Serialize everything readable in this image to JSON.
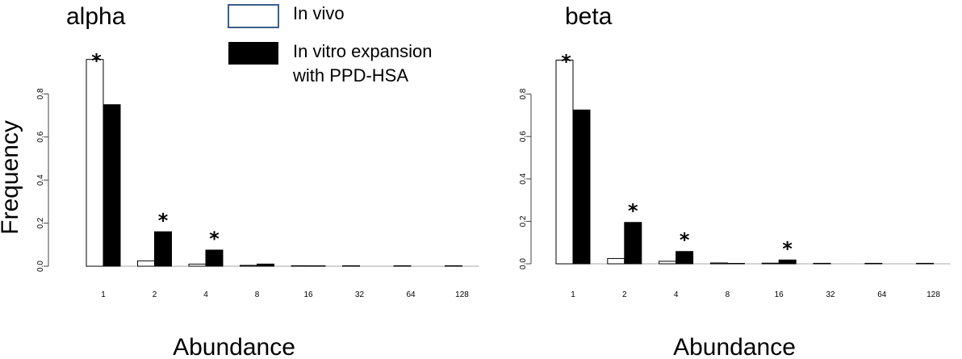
{
  "legend": {
    "entries": [
      {
        "label": "In vivo",
        "fill": "#ffffff",
        "stroke": "#3c5f8a"
      },
      {
        "label_lines": [
          "In vitro expansion",
          "with PPD-HSA"
        ],
        "fill": "#000000",
        "stroke": "#000000"
      }
    ]
  },
  "ylabel": "Frequency",
  "colors": {
    "in_vivo": "#ffffff",
    "in_vitro": "#000000",
    "axis": "#444444"
  },
  "chart_data": [
    {
      "type": "bar",
      "title": "alpha",
      "xlabel": "Abundance",
      "categories": [
        "1",
        "2",
        "4",
        "8",
        "16",
        "32",
        "64",
        "128"
      ],
      "series": [
        {
          "name": "In vivo",
          "values": [
            0.96,
            0.025,
            0.01,
            0.004,
            0.002,
            0.001,
            0.0005,
            0.0003
          ]
        },
        {
          "name": "In vitro expansion with PPD-HSA",
          "values": [
            0.75,
            0.16,
            0.075,
            0.01,
            0.002,
            0.0008,
            0.0003,
            0.0
          ]
        }
      ],
      "significant": [
        true,
        true,
        true,
        false,
        false,
        false,
        false,
        false
      ],
      "significance_marker": "*",
      "yticks": [
        "0.0",
        "0.2",
        "0.4",
        "0.6",
        "0.8"
      ],
      "ylim": [
        0,
        0.96
      ]
    },
    {
      "type": "bar",
      "title": "beta",
      "xlabel": "Abundance",
      "categories": [
        "1",
        "2",
        "4",
        "8",
        "16",
        "32",
        "64",
        "128"
      ],
      "series": [
        {
          "name": "In vivo",
          "values": [
            0.96,
            0.025,
            0.012,
            0.004,
            0.003,
            0.001,
            0.0005,
            0.0003
          ]
        },
        {
          "name": "In vitro expansion with PPD-HSA",
          "values": [
            0.725,
            0.195,
            0.058,
            0.002,
            0.018,
            0.0008,
            0.0003,
            0.0
          ]
        }
      ],
      "significant": [
        true,
        true,
        true,
        false,
        true,
        false,
        false,
        false
      ],
      "significance_marker": "*",
      "yticks": [
        "0.0",
        "0.2",
        "0.4",
        "0.6",
        "0.8"
      ],
      "ylim": [
        0,
        0.96
      ]
    }
  ]
}
